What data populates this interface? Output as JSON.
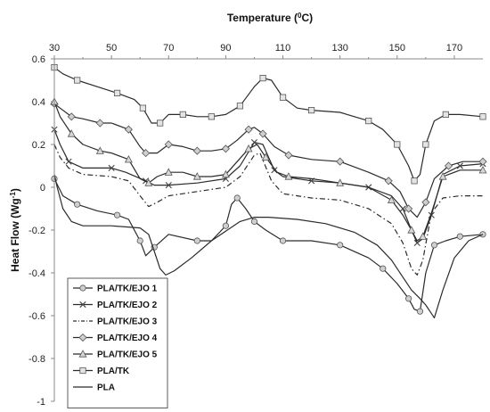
{
  "chart_data": {
    "type": "line",
    "title": "",
    "xlabel": "Temperature (",
    "xlabel_sup": "0",
    "xlabel_unit": "C)",
    "ylabel": "Heat Flow (Wg",
    "ylabel_sup": "-1",
    "ylabel_close": ")",
    "xlim": [
      30,
      180
    ],
    "ylim": [
      -1,
      0.6
    ],
    "x_ticks": [
      "30",
      "50",
      "70",
      "90",
      "110",
      "130",
      "150",
      "170"
    ],
    "x_tick_values": [
      30,
      50,
      70,
      90,
      110,
      130,
      150,
      170
    ],
    "y_ticks": [
      "0.6",
      "0.4",
      "0.2",
      "0",
      "-0.2",
      "-0.4",
      "-0.6",
      "-0.8",
      "-1"
    ],
    "y_tick_values": [
      0.6,
      0.4,
      0.2,
      0,
      -0.2,
      -0.4,
      -0.6,
      -0.8,
      -1
    ],
    "x_axis_position": "top",
    "grid": false,
    "legend": "bottom-left",
    "series": [
      {
        "name": "PLA/TK/EJO 1",
        "marker": "circle",
        "dash": "solid",
        "x": [
          30,
          33,
          38,
          45,
          52,
          56,
          60,
          62,
          65,
          70,
          80,
          85,
          90,
          92,
          94,
          97,
          100,
          104,
          110,
          120,
          130,
          140,
          145,
          150,
          154,
          156,
          158,
          160,
          163,
          167,
          172,
          180
        ],
        "y": [
          0.04,
          -0.04,
          -0.08,
          -0.11,
          -0.13,
          -0.15,
          -0.25,
          -0.32,
          -0.28,
          -0.22,
          -0.25,
          -0.25,
          -0.18,
          -0.08,
          -0.05,
          -0.1,
          -0.16,
          -0.2,
          -0.25,
          -0.25,
          -0.27,
          -0.33,
          -0.38,
          -0.45,
          -0.52,
          -0.57,
          -0.58,
          -0.4,
          -0.27,
          -0.25,
          -0.23,
          -0.22
        ]
      },
      {
        "name": "PLA/TK/EJO 2",
        "marker": "x",
        "dash": "solid",
        "x": [
          30,
          32,
          35,
          40,
          50,
          55,
          62,
          65,
          70,
          80,
          90,
          95,
          100,
          103,
          107,
          110,
          120,
          130,
          140,
          148,
          152,
          155,
          157,
          159,
          162,
          166,
          172,
          180
        ],
        "y": [
          0.27,
          0.2,
          0.12,
          0.09,
          0.09,
          0.07,
          0.03,
          0.01,
          0.01,
          0.02,
          0.04,
          0.1,
          0.21,
          0.2,
          0.08,
          0.05,
          0.03,
          0.02,
          0.0,
          -0.04,
          -0.1,
          -0.2,
          -0.26,
          -0.24,
          -0.13,
          0.06,
          0.1,
          0.11
        ]
      },
      {
        "name": "PLA/TK/EJO 3",
        "marker": "none",
        "dash": "dashdot",
        "x": [
          30,
          32,
          35,
          40,
          50,
          56,
          60,
          63,
          66,
          70,
          80,
          90,
          95,
          100,
          102,
          106,
          110,
          120,
          130,
          140,
          148,
          152,
          155,
          157,
          159,
          162,
          166,
          172,
          180
        ],
        "y": [
          0.2,
          0.14,
          0.09,
          0.06,
          0.05,
          0.03,
          -0.04,
          -0.09,
          -0.07,
          -0.04,
          -0.02,
          0.0,
          0.05,
          0.15,
          0.16,
          0.03,
          -0.03,
          -0.05,
          -0.06,
          -0.1,
          -0.17,
          -0.26,
          -0.38,
          -0.41,
          -0.34,
          -0.12,
          -0.05,
          -0.04,
          -0.04
        ]
      },
      {
        "name": "PLA/TK/EJO 4",
        "marker": "diamond",
        "dash": "solid",
        "x": [
          30,
          32,
          36,
          40,
          46,
          50,
          56,
          60,
          62,
          66,
          70,
          75,
          80,
          85,
          90,
          94,
          98,
          100,
          103,
          107,
          112,
          120,
          130,
          140,
          147,
          151,
          154,
          157,
          160,
          163,
          168,
          173,
          180
        ],
        "y": [
          0.39,
          0.37,
          0.33,
          0.32,
          0.3,
          0.3,
          0.27,
          0.19,
          0.16,
          0.16,
          0.2,
          0.19,
          0.17,
          0.17,
          0.18,
          0.22,
          0.27,
          0.28,
          0.25,
          0.19,
          0.15,
          0.13,
          0.12,
          0.07,
          0.03,
          -0.02,
          -0.1,
          -0.14,
          -0.07,
          0.04,
          0.1,
          0.12,
          0.12
        ]
      },
      {
        "name": "PLA/TK/EJO 5",
        "marker": "triangle",
        "dash": "solid",
        "x": [
          30,
          32,
          36,
          40,
          46,
          50,
          56,
          60,
          63,
          66,
          70,
          75,
          80,
          85,
          90,
          94,
          98,
          101,
          104,
          108,
          112,
          120,
          130,
          140,
          148,
          152,
          155,
          157,
          159,
          162,
          166,
          172,
          180
        ],
        "y": [
          0.4,
          0.33,
          0.25,
          0.2,
          0.17,
          0.16,
          0.13,
          0.04,
          0.02,
          0.05,
          0.07,
          0.07,
          0.05,
          0.05,
          0.06,
          0.12,
          0.18,
          0.2,
          0.14,
          0.07,
          0.05,
          0.04,
          0.02,
          0.0,
          -0.06,
          -0.13,
          -0.2,
          -0.25,
          -0.23,
          -0.12,
          0.05,
          0.08,
          0.08
        ]
      },
      {
        "name": "PLA/TK",
        "marker": "square",
        "dash": "solid",
        "x": [
          30,
          33,
          38,
          45,
          52,
          58,
          61,
          64,
          67,
          70,
          75,
          80,
          85,
          90,
          95,
          100,
          103,
          106,
          110,
          115,
          120,
          130,
          140,
          145,
          150,
          154,
          156,
          158,
          160,
          163,
          167,
          172,
          180
        ],
        "y": [
          0.56,
          0.53,
          0.5,
          0.47,
          0.44,
          0.41,
          0.37,
          0.3,
          0.3,
          0.34,
          0.34,
          0.33,
          0.33,
          0.34,
          0.38,
          0.47,
          0.51,
          0.5,
          0.42,
          0.37,
          0.36,
          0.35,
          0.31,
          0.27,
          0.2,
          0.1,
          0.03,
          0.06,
          0.2,
          0.31,
          0.34,
          0.34,
          0.33
        ]
      },
      {
        "name": "PLA",
        "marker": "none",
        "dash": "solid",
        "x": [
          30,
          31,
          33,
          36,
          40,
          50,
          60,
          63,
          65,
          67,
          69,
          72,
          78,
          85,
          95,
          100,
          105,
          115,
          125,
          135,
          143,
          148,
          152,
          155,
          158,
          160,
          162,
          163,
          166,
          170,
          175,
          180
        ],
        "y": [
          0.06,
          0.0,
          -0.1,
          -0.16,
          -0.18,
          -0.18,
          -0.19,
          -0.22,
          -0.3,
          -0.38,
          -0.41,
          -0.39,
          -0.33,
          -0.25,
          -0.16,
          -0.14,
          -0.14,
          -0.15,
          -0.17,
          -0.21,
          -0.27,
          -0.34,
          -0.42,
          -0.48,
          -0.52,
          -0.55,
          -0.59,
          -0.61,
          -0.48,
          -0.33,
          -0.25,
          -0.22
        ]
      }
    ]
  }
}
